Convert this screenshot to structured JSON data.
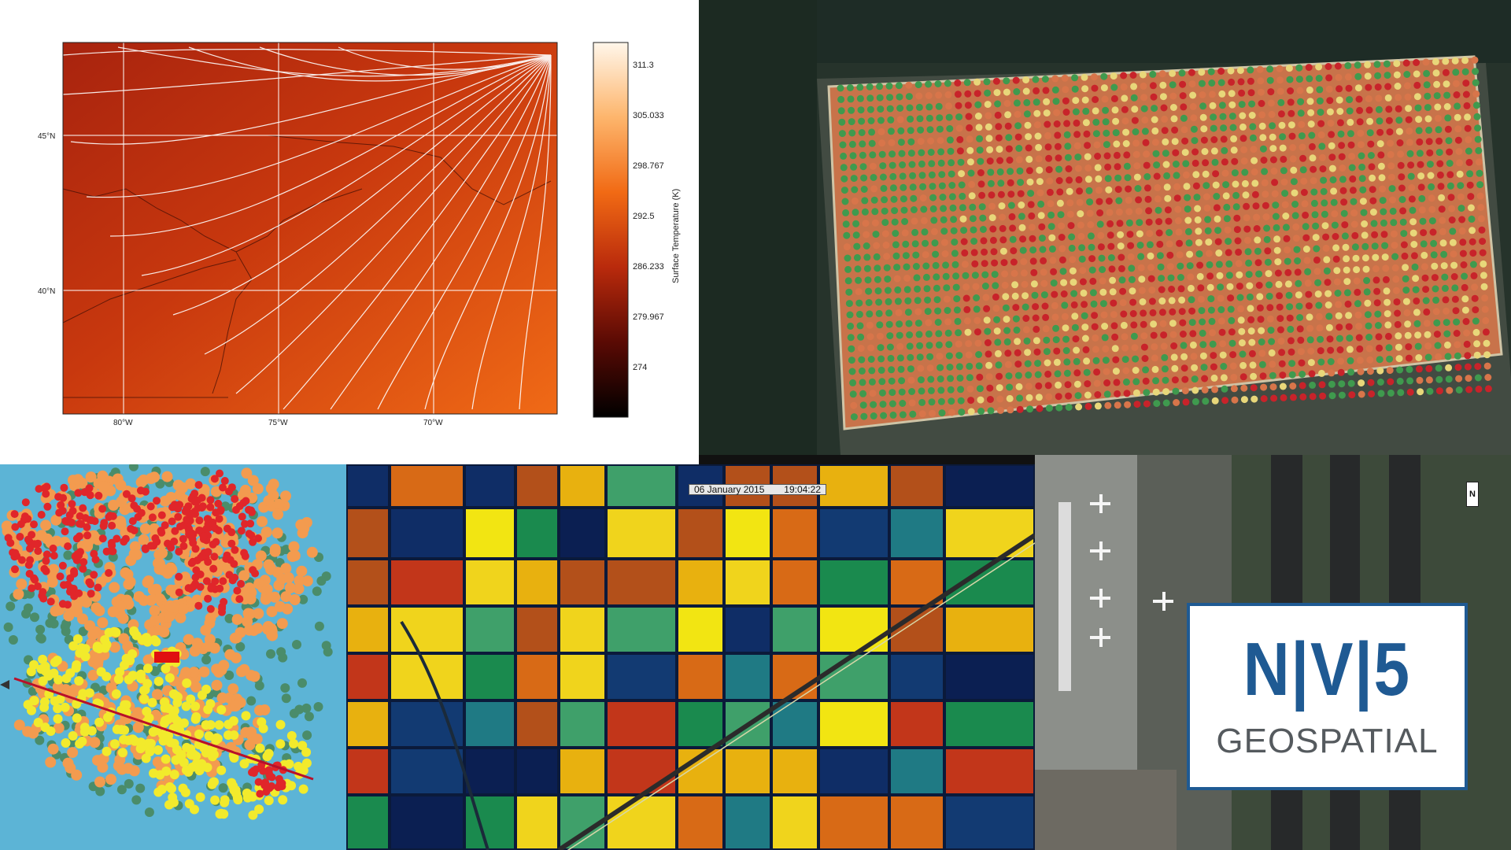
{
  "temperature_map": {
    "colorbar_title": "Surface Temperature (K)",
    "colorbar_ticks": [
      "311.3",
      "305.033",
      "298.767",
      "292.5",
      "286.233",
      "279.967",
      "274"
    ],
    "lat_labels": [
      "45°N",
      "40°N"
    ],
    "lon_labels": [
      "80°W",
      "75°W",
      "70°W"
    ],
    "colors": {
      "map_fill": "#d94a12",
      "streamline": "#ffffff",
      "gridline": "#ffffff"
    }
  },
  "orchard": {
    "colors": {
      "healthy": "#3f9a4e",
      "moderate": "#e8d77a",
      "stressed": "#c8232a",
      "bare": "#d8754a"
    }
  },
  "lidar": {
    "colors": {
      "water": "#5cb4d6",
      "high": "#e0262a",
      "mid": "#f39b4f",
      "low": "#f2ea2c",
      "veg": "#4a8c6a",
      "line": "#b8102a"
    }
  },
  "fields": {
    "timestamp_date": "06 January 2015",
    "timestamp_time": "19:04:22"
  },
  "airport": {
    "north_label": "N",
    "logo": {
      "main": "N|V|5",
      "sub": "GEOSPATIAL",
      "color": "#1f5a93"
    }
  }
}
